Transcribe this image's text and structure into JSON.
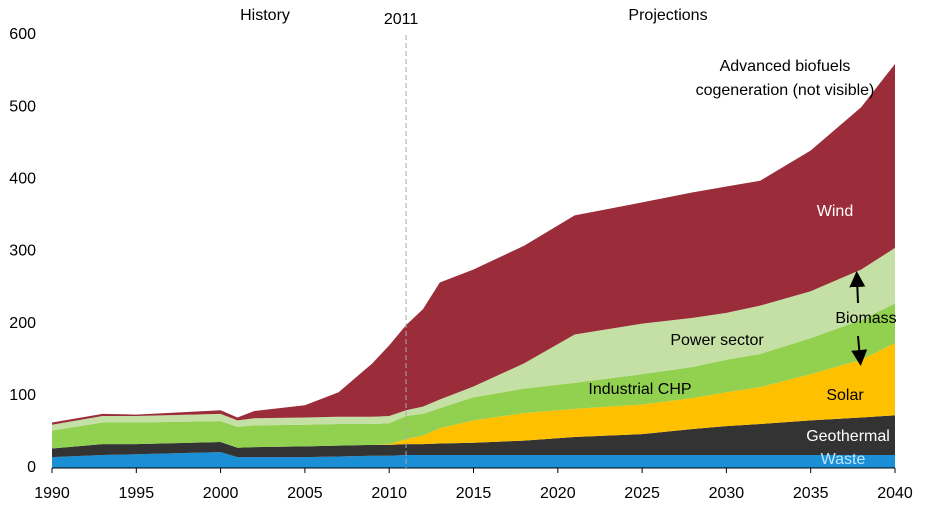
{
  "chart_data": {
    "type": "stacked_area",
    "x": [
      1990,
      1993,
      1995,
      2000,
      2001,
      2002,
      2005,
      2007,
      2009,
      2010,
      2011,
      2012,
      2013,
      2015,
      2018,
      2021,
      2025,
      2028,
      2030,
      2032,
      2035,
      2038,
      2040
    ],
    "series": [
      {
        "name": "Waste",
        "color": "#1a8fd6",
        "values": [
          15,
          18,
          19,
          22,
          15,
          15,
          15,
          16,
          17,
          17,
          18,
          18,
          18,
          18,
          18,
          18,
          18,
          18,
          18,
          18,
          18,
          18,
          18
        ]
      },
      {
        "name": "Geothermal",
        "color": "#333333",
        "values": [
          12,
          15,
          14,
          14,
          13,
          14,
          15,
          15,
          15,
          15,
          15,
          15,
          16,
          17,
          20,
          25,
          29,
          36,
          40,
          43,
          48,
          52,
          55
        ]
      },
      {
        "name": "Solar",
        "color": "#ffc000",
        "values": [
          0,
          0,
          0,
          0,
          0,
          0,
          0,
          0,
          0,
          1,
          7,
          12,
          21,
          31,
          38,
          39,
          41,
          43,
          47,
          51,
          64,
          80,
          100
        ]
      },
      {
        "name": "Industrial CHP",
        "color": "#92d050",
        "values": [
          25,
          30,
          30,
          29,
          29,
          30,
          30,
          30,
          29,
          29,
          32,
          30,
          28,
          32,
          34,
          36,
          42,
          43,
          45,
          46,
          50,
          55,
          55
        ]
      },
      {
        "name": "Power sector",
        "color": "#c4e0a4",
        "values": [
          8,
          9,
          9,
          10,
          9,
          10,
          10,
          10,
          10,
          10,
          8,
          10,
          12,
          15,
          35,
          67,
          70,
          68,
          65,
          67,
          65,
          70,
          77
        ]
      },
      {
        "name": "Wind",
        "color": "#9b2d3a",
        "values": [
          3,
          3,
          2,
          5,
          4,
          10,
          17,
          34,
          74,
          98,
          118,
          135,
          162,
          162,
          163,
          165,
          168,
          174,
          175,
          173,
          195,
          225,
          255
        ]
      }
    ],
    "xlim": [
      1990,
      2040
    ],
    "ylim": [
      0,
      600
    ],
    "xticks": [
      1990,
      1995,
      2000,
      2005,
      2010,
      2015,
      2020,
      2025,
      2030,
      2035,
      2040
    ],
    "yticks": [
      0,
      100,
      200,
      300,
      400,
      500,
      600
    ],
    "vline": {
      "x": 2011
    },
    "region_labels": [
      "History",
      "Projections"
    ],
    "group_label": "Biomass",
    "annotation": [
      "Advanced biofuels",
      "cogeneration (not visible)"
    ]
  }
}
